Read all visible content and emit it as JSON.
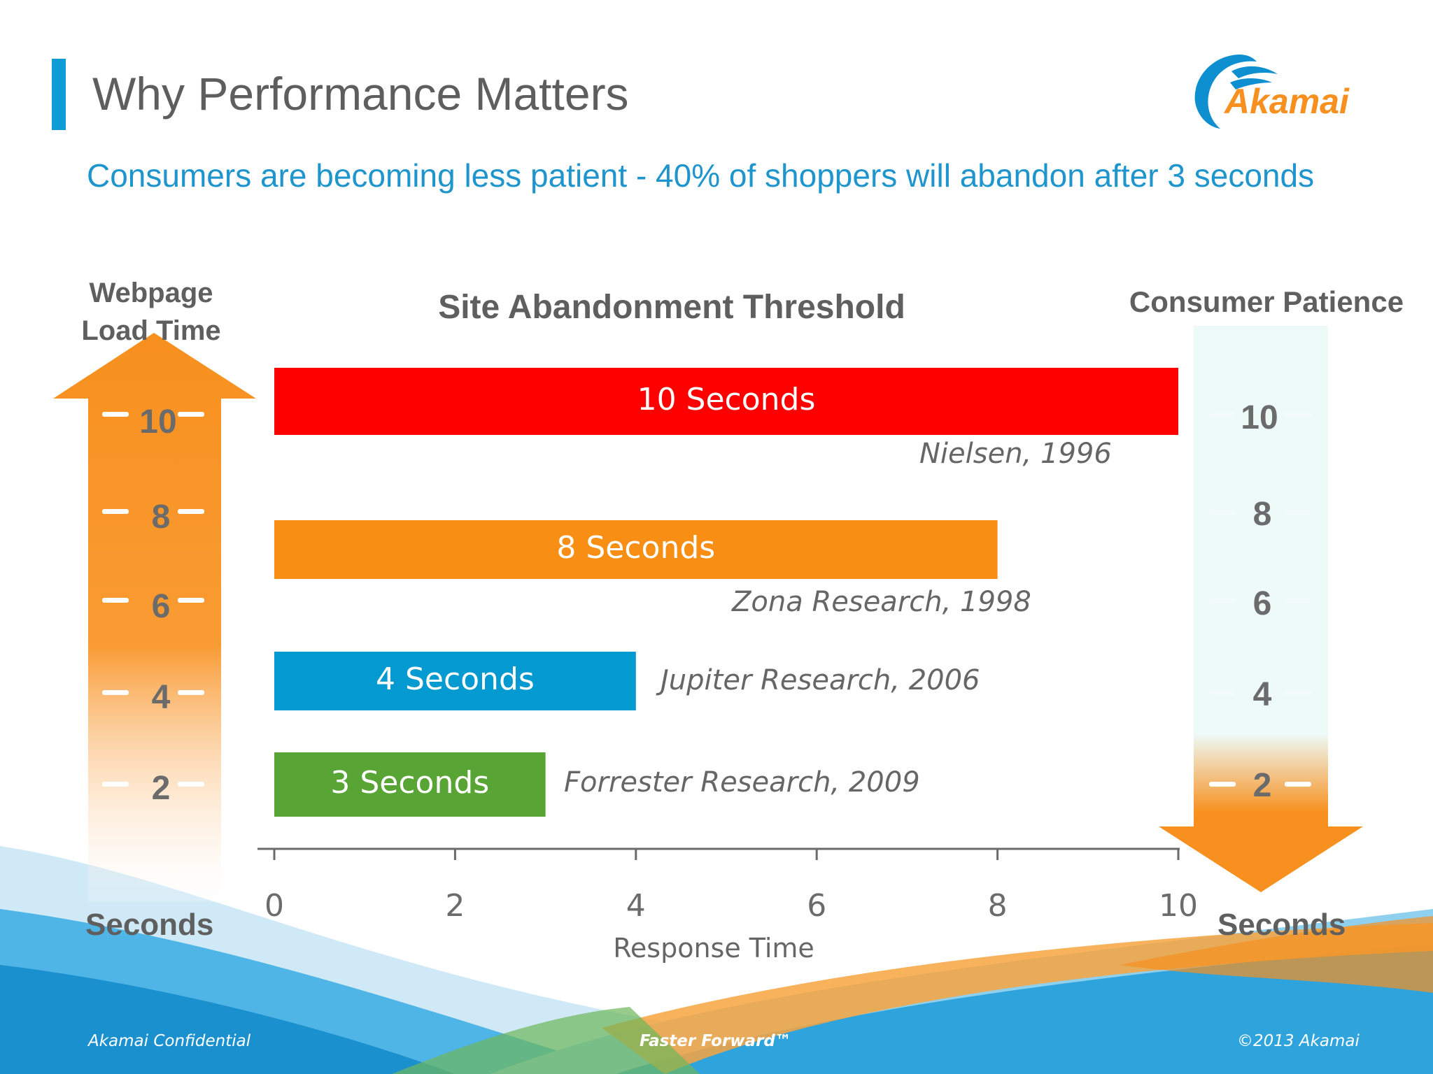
{
  "slide": {
    "title": "Why Performance Matters",
    "subtitle": "Consumers are becoming less patient - 40% of shoppers will abandon after 3 seconds",
    "logo_text": "Akamai",
    "footer_left": "Akamai Confidential",
    "footer_center": "Faster Forward™",
    "footer_right": "©2013 Akamai"
  },
  "left_scale": {
    "title": "Webpage Load Time",
    "unit_label": "Seconds",
    "ticks": [
      "10",
      "8",
      "6",
      "4",
      "2"
    ],
    "color": "#f7901e"
  },
  "right_scale": {
    "title": "Consumer Patience",
    "unit_label": "Seconds",
    "ticks": [
      "10",
      "8",
      "6",
      "4",
      "2"
    ],
    "color": "#f7901e"
  },
  "chart_data": {
    "type": "bar",
    "orientation": "horizontal",
    "title": "Site Abandonment Threshold",
    "xlabel": "Response Time",
    "ylabel": "",
    "xlim": [
      0,
      10
    ],
    "xticks": [
      "0",
      "2",
      "4",
      "6",
      "8",
      "10"
    ],
    "grid": false,
    "bars": [
      {
        "value": 10,
        "label": "10 Seconds",
        "source": "Nielsen, 1996",
        "color": "#ff0000"
      },
      {
        "value": 8,
        "label": "8 Seconds",
        "source": "Zona Research, 1998",
        "color": "#f88e14"
      },
      {
        "value": 4,
        "label": "4 Seconds",
        "source": "Jupiter Research, 2006",
        "color": "#0399d1"
      },
      {
        "value": 3,
        "label": "3 Seconds",
        "source": "Forrester Research, 2009",
        "color": "#58a535"
      }
    ]
  }
}
